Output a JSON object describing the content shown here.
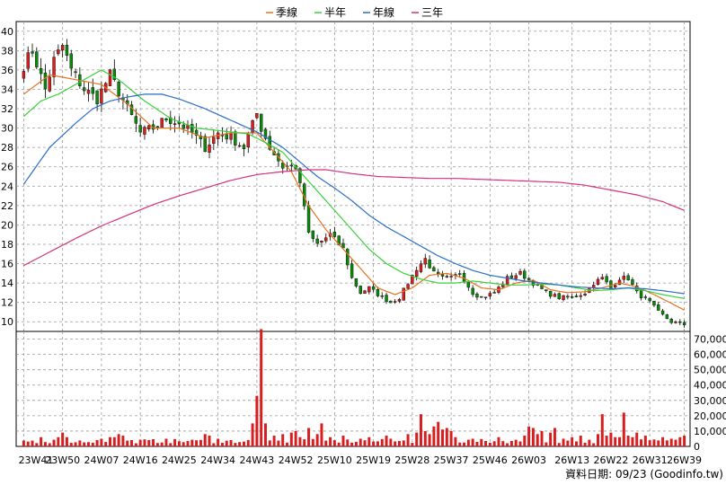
{
  "chart_data": [
    {
      "type": "candlestick",
      "panel": "price",
      "ylim": [
        9,
        41
      ],
      "yticks": [
        10,
        12,
        14,
        16,
        18,
        20,
        22,
        24,
        26,
        28,
        30,
        32,
        34,
        36,
        38,
        40
      ],
      "legend_position": "top-center",
      "grid": true,
      "colors": {
        "up": "#d81e1e",
        "down": "#0a8a0a",
        "wick": "#000000"
      },
      "x_ticks": [
        "23W41",
        "23W50",
        "24W07",
        "24W16",
        "24W25",
        "24W34",
        "24W43",
        "24W52",
        "25W10",
        "25W19",
        "25W28",
        "25W37",
        "25W46",
        "26W03",
        "26W13",
        "26W22",
        "26W31",
        "26W39"
      ],
      "x_tick_week_index": [
        0,
        9,
        18,
        27,
        36,
        45,
        54,
        63,
        72,
        81,
        90,
        99,
        108,
        117,
        127,
        136,
        145,
        153
      ],
      "close_anchors": [
        [
          0,
          36.5
        ],
        [
          2,
          38
        ],
        [
          5,
          34
        ],
        [
          7,
          37
        ],
        [
          9,
          38.5
        ],
        [
          11,
          36
        ],
        [
          14,
          34
        ],
        [
          17,
          33
        ],
        [
          20,
          35.5
        ],
        [
          24,
          32
        ],
        [
          27,
          29.5
        ],
        [
          30,
          30
        ],
        [
          33,
          31
        ],
        [
          36,
          30.5
        ],
        [
          39,
          29.5
        ],
        [
          42,
          28
        ],
        [
          45,
          29.5
        ],
        [
          48,
          29
        ],
        [
          51,
          28
        ],
        [
          54,
          31.5
        ],
        [
          55,
          30
        ],
        [
          57,
          28
        ],
        [
          60,
          26
        ],
        [
          63,
          26
        ],
        [
          65,
          22
        ],
        [
          66,
          19
        ],
        [
          68,
          18
        ],
        [
          71,
          19
        ],
        [
          74,
          17.5
        ],
        [
          76,
          14.5
        ],
        [
          78,
          13
        ],
        [
          80,
          13.5
        ],
        [
          83,
          12.5
        ],
        [
          85,
          12
        ],
        [
          87,
          12.5
        ],
        [
          89,
          14
        ],
        [
          91,
          15.5
        ],
        [
          93,
          16.5
        ],
        [
          95,
          15
        ],
        [
          97,
          14.5
        ],
        [
          99,
          14.5
        ],
        [
          101,
          15
        ],
        [
          104,
          13
        ],
        [
          106,
          12.5
        ],
        [
          109,
          13
        ],
        [
          112,
          14.5
        ],
        [
          115,
          15
        ],
        [
          118,
          14
        ],
        [
          121,
          13
        ],
        [
          124,
          12.5
        ],
        [
          127,
          12.5
        ],
        [
          130,
          13
        ],
        [
          132,
          14
        ],
        [
          134,
          14.5
        ],
        [
          136,
          13.5
        ],
        [
          138,
          14.5
        ],
        [
          140,
          14.5
        ],
        [
          142,
          13
        ],
        [
          145,
          12
        ],
        [
          147,
          11
        ],
        [
          150,
          10
        ],
        [
          153,
          9.7
        ]
      ],
      "ma_series": [
        {
          "name": "季線",
          "color": "#e8711f",
          "points": [
            [
              0,
              33.5
            ],
            [
              6,
              35.5
            ],
            [
              12,
              35
            ],
            [
              18,
              34.5
            ],
            [
              24,
              32.5
            ],
            [
              30,
              30
            ],
            [
              36,
              30
            ],
            [
              42,
              29
            ],
            [
              48,
              29.5
            ],
            [
              54,
              29.5
            ],
            [
              58,
              27.5
            ],
            [
              62,
              25.5
            ],
            [
              66,
              22
            ],
            [
              70,
              19.5
            ],
            [
              74,
              17.5
            ],
            [
              78,
              15.5
            ],
            [
              82,
              13.5
            ],
            [
              86,
              12.8
            ],
            [
              90,
              13.5
            ],
            [
              94,
              14.8
            ],
            [
              98,
              15
            ],
            [
              102,
              14.5
            ],
            [
              106,
              13.5
            ],
            [
              110,
              13.3
            ],
            [
              114,
              14
            ],
            [
              118,
              14.3
            ],
            [
              122,
              13.3
            ],
            [
              126,
              13
            ],
            [
              130,
              13.1
            ],
            [
              134,
              13.5
            ],
            [
              138,
              14
            ],
            [
              142,
              13.6
            ],
            [
              146,
              12.8
            ],
            [
              150,
              11.9
            ],
            [
              153,
              11.2
            ]
          ]
        },
        {
          "name": "半年",
          "color": "#3bd13b",
          "points": [
            [
              0,
              31.2
            ],
            [
              4,
              32.8
            ],
            [
              8,
              33.5
            ],
            [
              12,
              34.5
            ],
            [
              16,
              35.5
            ],
            [
              18,
              36
            ],
            [
              22,
              35
            ],
            [
              28,
              32.8
            ],
            [
              34,
              31
            ],
            [
              40,
              30
            ],
            [
              46,
              29.7
            ],
            [
              52,
              29.4
            ],
            [
              56,
              28.5
            ],
            [
              60,
              27.5
            ],
            [
              64,
              25.5
            ],
            [
              68,
              23.5
            ],
            [
              72,
              21.5
            ],
            [
              76,
              19.5
            ],
            [
              80,
              17.5
            ],
            [
              84,
              16
            ],
            [
              88,
              15
            ],
            [
              92,
              14.4
            ],
            [
              96,
              14
            ],
            [
              100,
              14
            ],
            [
              104,
              14.2
            ],
            [
              108,
              14
            ],
            [
              112,
              13.8
            ],
            [
              116,
              13.8
            ],
            [
              120,
              13.9
            ],
            [
              124,
              13.8
            ],
            [
              128,
              13.5
            ],
            [
              132,
              13.2
            ],
            [
              136,
              13.3
            ],
            [
              140,
              13.5
            ],
            [
              144,
              13.2
            ],
            [
              148,
              12.8
            ],
            [
              153,
              12.4
            ]
          ]
        },
        {
          "name": "年線",
          "color": "#2a6dc9",
          "points": [
            [
              0,
              24.2
            ],
            [
              6,
              28
            ],
            [
              12,
              30.5
            ],
            [
              16,
              32
            ],
            [
              20,
              32.8
            ],
            [
              24,
              33.2
            ],
            [
              28,
              33.5
            ],
            [
              32,
              33.5
            ],
            [
              36,
              33
            ],
            [
              42,
              32
            ],
            [
              48,
              30.8
            ],
            [
              54,
              29.6
            ],
            [
              60,
              28
            ],
            [
              64,
              26.5
            ],
            [
              68,
              25
            ],
            [
              72,
              23.8
            ],
            [
              76,
              22.5
            ],
            [
              80,
              21
            ],
            [
              84,
              19.8
            ],
            [
              88,
              18.8
            ],
            [
              92,
              17.8
            ],
            [
              96,
              16.8
            ],
            [
              100,
              16
            ],
            [
              104,
              15.3
            ],
            [
              108,
              14.8
            ],
            [
              112,
              14.5
            ],
            [
              116,
              14.2
            ],
            [
              120,
              14
            ],
            [
              124,
              13.8
            ],
            [
              128,
              13.6
            ],
            [
              132,
              13.5
            ],
            [
              136,
              13.4
            ],
            [
              140,
              13.5
            ],
            [
              144,
              13.4
            ],
            [
              148,
              13.2
            ],
            [
              153,
              12.9
            ]
          ]
        },
        {
          "name": "三年",
          "color": "#d6317a",
          "points": [
            [
              0,
              15.8
            ],
            [
              6,
              17.2
            ],
            [
              12,
              18.6
            ],
            [
              18,
              19.9
            ],
            [
              24,
              21
            ],
            [
              30,
              22.1
            ],
            [
              36,
              23
            ],
            [
              42,
              23.8
            ],
            [
              48,
              24.6
            ],
            [
              54,
              25.2
            ],
            [
              60,
              25.5
            ],
            [
              66,
              25.7
            ],
            [
              70,
              25.7
            ],
            [
              76,
              25.3
            ],
            [
              82,
              25
            ],
            [
              88,
              24.9
            ],
            [
              94,
              24.8
            ],
            [
              100,
              24.8
            ],
            [
              106,
              24.7
            ],
            [
              112,
              24.6
            ],
            [
              118,
              24.5
            ],
            [
              124,
              24.4
            ],
            [
              130,
              24.1
            ],
            [
              136,
              23.6
            ],
            [
              142,
              23.1
            ],
            [
              148,
              22.4
            ],
            [
              153,
              21.5
            ]
          ]
        }
      ]
    },
    {
      "type": "bar",
      "panel": "volume",
      "ylim": [
        0,
        75000
      ],
      "ytick_labels": [
        "0",
        "10,000",
        "20,000",
        "30,000",
        "40,000",
        "50,000",
        "60,000",
        "70,000"
      ],
      "ytick_values": [
        0,
        10000,
        20000,
        30000,
        40000,
        50000,
        60000,
        70000
      ],
      "color": "#d81e1e",
      "baseline": 4000,
      "spikes": [
        [
          4,
          6000
        ],
        [
          8,
          6000
        ],
        [
          9,
          9000
        ],
        [
          10,
          6000
        ],
        [
          18,
          5000
        ],
        [
          20,
          6000
        ],
        [
          21,
          6000
        ],
        [
          22,
          8000
        ],
        [
          23,
          7000
        ],
        [
          33,
          5000
        ],
        [
          42,
          8000
        ],
        [
          43,
          7000
        ],
        [
          45,
          5000
        ],
        [
          53,
          15000
        ],
        [
          54,
          33000
        ],
        [
          55,
          82000
        ],
        [
          56,
          15000
        ],
        [
          58,
          7000
        ],
        [
          60,
          8000
        ],
        [
          62,
          9000
        ],
        [
          63,
          10000
        ],
        [
          64,
          6000
        ],
        [
          66,
          12000
        ],
        [
          68,
          8000
        ],
        [
          69,
          15000
        ],
        [
          71,
          6000
        ],
        [
          74,
          7000
        ],
        [
          78,
          5000
        ],
        [
          80,
          6000
        ],
        [
          84,
          7000
        ],
        [
          85,
          5000
        ],
        [
          89,
          8000
        ],
        [
          91,
          9000
        ],
        [
          92,
          21000
        ],
        [
          93,
          10000
        ],
        [
          94,
          8000
        ],
        [
          95,
          13000
        ],
        [
          96,
          16000
        ],
        [
          97,
          11000
        ],
        [
          98,
          12000
        ],
        [
          99,
          10000
        ],
        [
          100,
          6000
        ],
        [
          104,
          5000
        ],
        [
          110,
          6000
        ],
        [
          116,
          7000
        ],
        [
          117,
          13000
        ],
        [
          118,
          12000
        ],
        [
          119,
          8000
        ],
        [
          120,
          10000
        ],
        [
          122,
          9000
        ],
        [
          123,
          12000
        ],
        [
          125,
          5000
        ],
        [
          127,
          6000
        ],
        [
          129,
          7000
        ],
        [
          133,
          8000
        ],
        [
          134,
          21000
        ],
        [
          135,
          7000
        ],
        [
          136,
          9000
        ],
        [
          137,
          6000
        ],
        [
          138,
          6000
        ],
        [
          139,
          22000
        ],
        [
          140,
          7000
        ],
        [
          141,
          6000
        ],
        [
          142,
          9000
        ],
        [
          144,
          7000
        ],
        [
          148,
          6000
        ],
        [
          150,
          5000
        ],
        [
          152,
          6000
        ],
        [
          153,
          7000
        ]
      ]
    }
  ],
  "legend": [
    {
      "label": "季線",
      "color": "#e8711f"
    },
    {
      "label": "半年",
      "color": "#3bd13b"
    },
    {
      "label": "年線",
      "color": "#2a6dc9"
    },
    {
      "label": "三年",
      "color": "#d6317a"
    }
  ],
  "footer": "資料日期: 09/23  (Goodinfo.tw)"
}
